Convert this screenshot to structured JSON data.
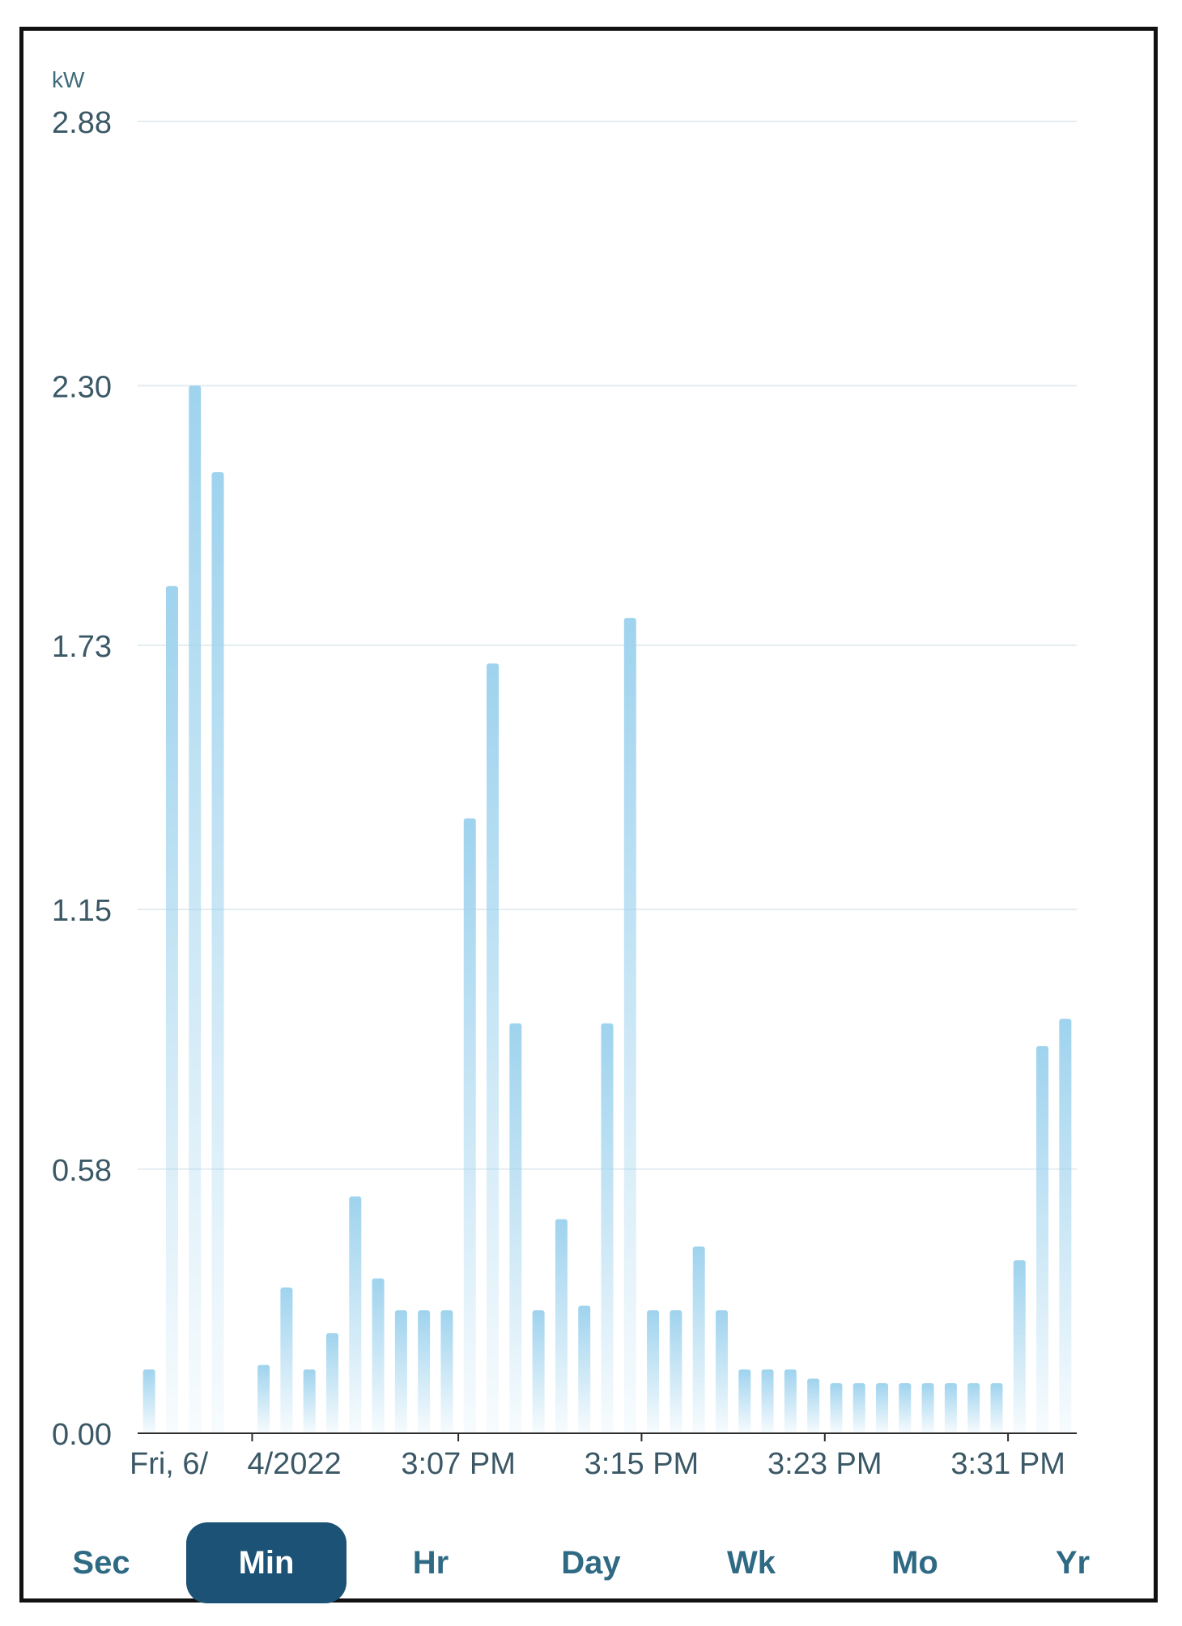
{
  "chart_data": {
    "type": "bar",
    "ylabel": "kW",
    "ylim": [
      0,
      2.88
    ],
    "yticks": [
      "2.88",
      "2.30",
      "1.73",
      "1.15",
      "0.58",
      "0.00"
    ],
    "xtick_labels": [
      "Fri, 6/",
      "4/2022",
      "3:07 PM",
      "3:15 PM",
      "3:23 PM",
      "3:31 PM"
    ],
    "grid": true,
    "values": [
      0.14,
      1.86,
      2.3,
      2.11,
      null,
      0.15,
      0.32,
      0.14,
      0.22,
      0.52,
      0.34,
      0.27,
      0.27,
      0.27,
      1.35,
      1.69,
      0.9,
      0.27,
      0.47,
      0.28,
      0.9,
      1.79,
      0.27,
      0.27,
      0.41,
      0.27,
      0.14,
      0.14,
      0.14,
      0.12,
      0.11,
      0.11,
      0.11,
      0.11,
      0.11,
      0.11,
      0.11,
      0.11,
      0.38,
      0.85,
      0.91
    ],
    "bar_color": "#9fd3ee"
  },
  "tabs": [
    {
      "label": "Sec",
      "active": false
    },
    {
      "label": "Min",
      "active": true
    },
    {
      "label": "Hr",
      "active": false
    },
    {
      "label": "Day",
      "active": false
    },
    {
      "label": "Wk",
      "active": false
    },
    {
      "label": "Mo",
      "active": false
    },
    {
      "label": "Yr",
      "active": false
    }
  ]
}
